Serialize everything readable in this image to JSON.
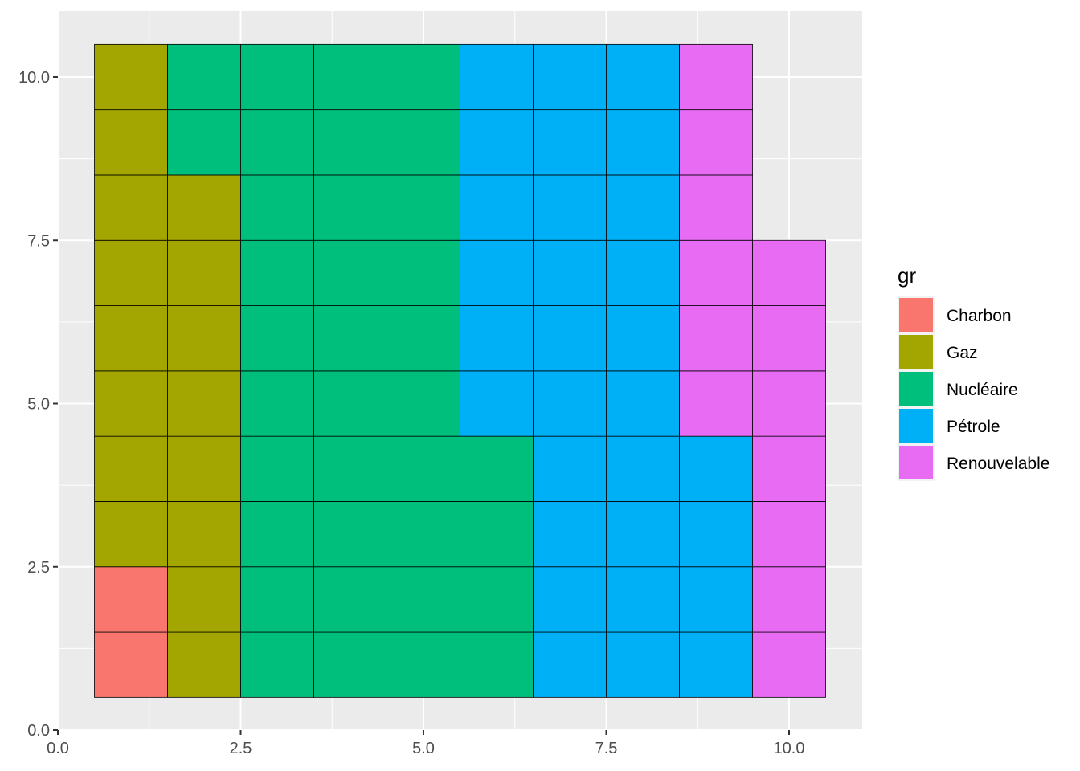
{
  "chart_data": {
    "type": "heatmap",
    "title": "",
    "xlabel": "",
    "ylabel": "",
    "xlim": [
      0,
      10.5
    ],
    "ylim": [
      0,
      10.5
    ],
    "x_ticks": [
      {
        "value": 0,
        "label": "0.0"
      },
      {
        "value": 2.5,
        "label": "2.5"
      },
      {
        "value": 5,
        "label": "5.0"
      },
      {
        "value": 7.5,
        "label": "7.5"
      },
      {
        "value": 10,
        "label": "10.0"
      }
    ],
    "y_ticks": [
      {
        "value": 0,
        "label": "0.0"
      },
      {
        "value": 2.5,
        "label": "2.5"
      },
      {
        "value": 5,
        "label": "5.0"
      },
      {
        "value": 7.5,
        "label": "7.5"
      },
      {
        "value": 10,
        "label": "10.0"
      }
    ],
    "grid": true,
    "legend": {
      "title": "gr",
      "placement": "right",
      "entries": [
        {
          "name": "Charbon",
          "color": "#F8766D"
        },
        {
          "name": "Gaz",
          "color": "#A3A500"
        },
        {
          "name": "Nucléaire",
          "color": "#00BF7D"
        },
        {
          "name": "Pétrole",
          "color": "#00B0F6"
        },
        {
          "name": "Renouvelable",
          "color": "#E76BF3"
        }
      ]
    },
    "columns": [
      {
        "x": 1,
        "segments": [
          {
            "group": "Charbon",
            "from": 1,
            "to": 2
          },
          {
            "group": "Gaz",
            "from": 3,
            "to": 10
          }
        ]
      },
      {
        "x": 2,
        "segments": [
          {
            "group": "Gaz",
            "from": 1,
            "to": 8
          },
          {
            "group": "Nucléaire",
            "from": 9,
            "to": 10
          }
        ]
      },
      {
        "x": 3,
        "segments": [
          {
            "group": "Nucléaire",
            "from": 1,
            "to": 10
          }
        ]
      },
      {
        "x": 4,
        "segments": [
          {
            "group": "Nucléaire",
            "from": 1,
            "to": 10
          }
        ]
      },
      {
        "x": 5,
        "segments": [
          {
            "group": "Nucléaire",
            "from": 1,
            "to": 10
          }
        ]
      },
      {
        "x": 6,
        "segments": [
          {
            "group": "Nucléaire",
            "from": 1,
            "to": 4
          },
          {
            "group": "Pétrole",
            "from": 5,
            "to": 10
          }
        ]
      },
      {
        "x": 7,
        "segments": [
          {
            "group": "Pétrole",
            "from": 1,
            "to": 10
          }
        ]
      },
      {
        "x": 8,
        "segments": [
          {
            "group": "Pétrole",
            "from": 1,
            "to": 10
          }
        ]
      },
      {
        "x": 9,
        "segments": [
          {
            "group": "Pétrole",
            "from": 1,
            "to": 4
          },
          {
            "group": "Renouvelable",
            "from": 5,
            "to": 10
          }
        ]
      },
      {
        "x": 10,
        "segments": [
          {
            "group": "Renouvelable",
            "from": 1,
            "to": 7
          }
        ]
      }
    ]
  }
}
